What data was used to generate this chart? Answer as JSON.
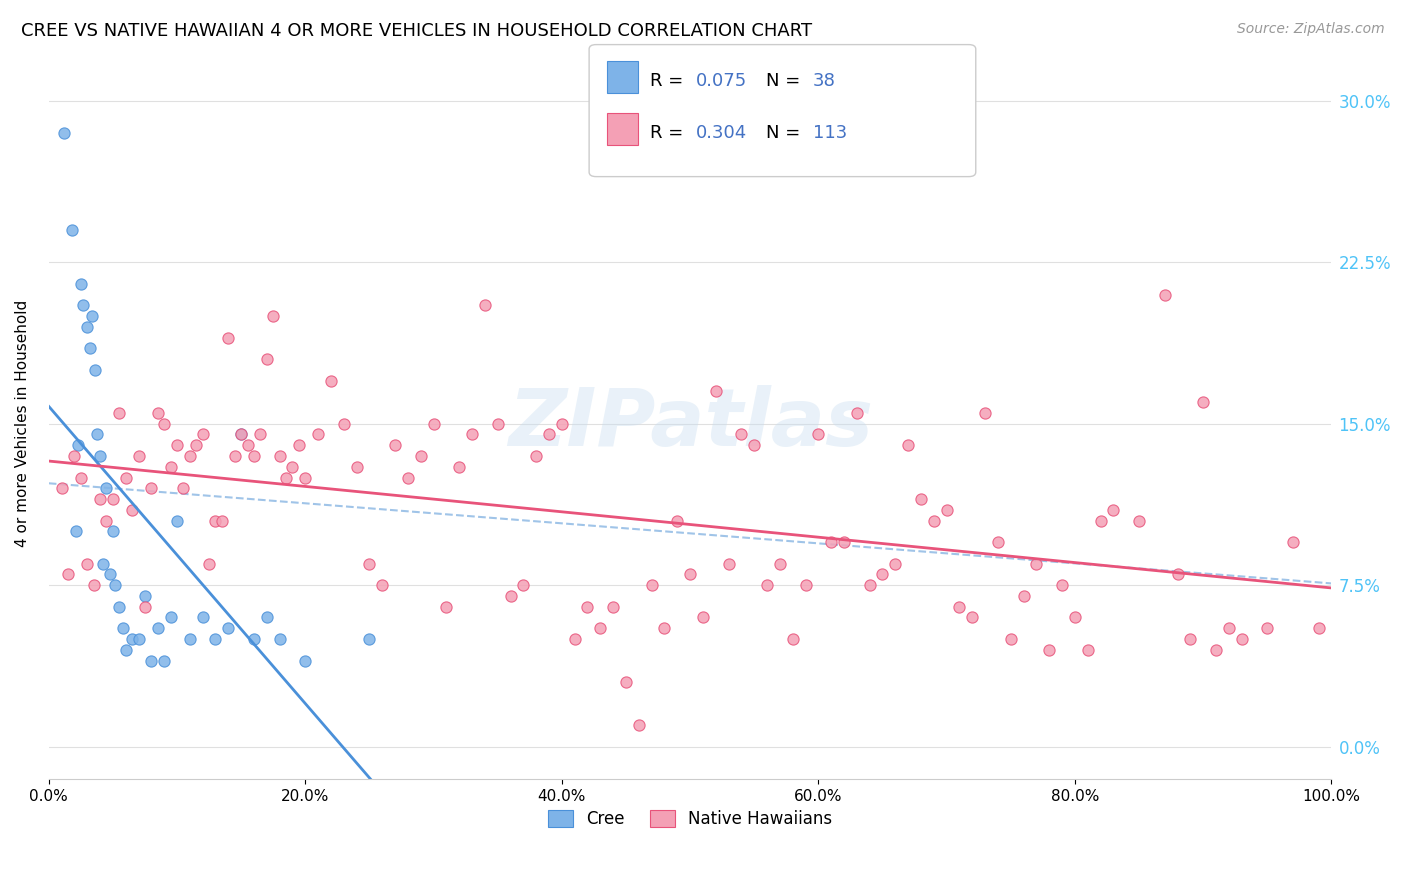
{
  "title": "CREE VS NATIVE HAWAIIAN 4 OR MORE VEHICLES IN HOUSEHOLD CORRELATION CHART",
  "source": "Source: ZipAtlas.com",
  "ylabel": "4 or more Vehicles in Household",
  "xlim": [
    0.0,
    100.0
  ],
  "ylim": [
    -1.5,
    31.5
  ],
  "yticks": [
    0.0,
    7.5,
    15.0,
    22.5,
    30.0
  ],
  "ytick_labels": [
    "0.0%",
    "7.5%",
    "15.0%",
    "22.5%",
    "30.0%"
  ],
  "xticks": [
    0.0,
    20.0,
    40.0,
    60.0,
    80.0,
    100.0
  ],
  "xtick_labels": [
    "0.0%",
    "20.0%",
    "40.0%",
    "60.0%",
    "80.0%",
    "100.0%"
  ],
  "cree_color": "#7EB3E8",
  "hawaiian_color": "#F4A0B5",
  "cree_line_color": "#4A90D9",
  "hawaiian_line_color": "#E8537A",
  "dashed_line_color": "#A0C4E8",
  "legend_r_color": "#4472C4",
  "cree_R": 0.075,
  "cree_N": 38,
  "hawaiian_R": 0.304,
  "hawaiian_N": 113,
  "watermark": "ZIPatlas",
  "cree_x": [
    1.2,
    1.8,
    2.1,
    2.3,
    2.5,
    2.7,
    3.0,
    3.2,
    3.4,
    3.6,
    3.8,
    4.0,
    4.2,
    4.5,
    4.8,
    5.0,
    5.2,
    5.5,
    5.8,
    6.0,
    6.5,
    7.0,
    7.5,
    8.0,
    8.5,
    9.0,
    9.5,
    10.0,
    11.0,
    12.0,
    13.0,
    14.0,
    15.0,
    16.0,
    17.0,
    18.0,
    20.0,
    25.0
  ],
  "cree_y": [
    28.5,
    24.0,
    10.0,
    14.0,
    21.5,
    20.5,
    19.5,
    18.5,
    20.0,
    17.5,
    14.5,
    13.5,
    8.5,
    12.0,
    8.0,
    10.0,
    7.5,
    6.5,
    5.5,
    4.5,
    5.0,
    5.0,
    7.0,
    4.0,
    5.5,
    4.0,
    6.0,
    10.5,
    5.0,
    6.0,
    5.0,
    5.5,
    14.5,
    5.0,
    6.0,
    5.0,
    4.0,
    5.0
  ],
  "hawaiian_x": [
    1.0,
    1.5,
    2.0,
    2.5,
    3.0,
    3.5,
    4.0,
    4.5,
    5.0,
    5.5,
    6.0,
    6.5,
    7.0,
    7.5,
    8.0,
    8.5,
    9.0,
    9.5,
    10.0,
    10.5,
    11.0,
    11.5,
    12.0,
    12.5,
    13.0,
    13.5,
    14.0,
    14.5,
    15.0,
    15.5,
    16.0,
    16.5,
    17.0,
    17.5,
    18.0,
    18.5,
    19.0,
    19.5,
    20.0,
    21.0,
    22.0,
    23.0,
    24.0,
    25.0,
    26.0,
    27.0,
    28.0,
    29.0,
    30.0,
    31.0,
    32.0,
    33.0,
    34.0,
    35.0,
    36.0,
    37.0,
    38.0,
    39.0,
    40.0,
    41.0,
    42.0,
    43.0,
    44.0,
    45.0,
    46.0,
    47.0,
    48.0,
    49.0,
    50.0,
    51.0,
    52.0,
    53.0,
    54.0,
    55.0,
    56.0,
    57.0,
    58.0,
    59.0,
    60.0,
    61.0,
    62.0,
    63.0,
    64.0,
    65.0,
    66.0,
    67.0,
    68.0,
    69.0,
    70.0,
    71.0,
    72.0,
    73.0,
    74.0,
    75.0,
    76.0,
    77.0,
    78.0,
    79.0,
    80.0,
    81.0,
    82.0,
    83.0,
    85.0,
    87.0,
    88.0,
    89.0,
    90.0,
    91.0,
    92.0,
    93.0,
    95.0,
    97.0,
    99.0
  ],
  "hawaiian_y": [
    12.0,
    8.0,
    13.5,
    12.5,
    8.5,
    7.5,
    11.5,
    10.5,
    11.5,
    15.5,
    12.5,
    11.0,
    13.5,
    6.5,
    12.0,
    15.5,
    15.0,
    13.0,
    14.0,
    12.0,
    13.5,
    14.0,
    14.5,
    8.5,
    10.5,
    10.5,
    19.0,
    13.5,
    14.5,
    14.0,
    13.5,
    14.5,
    18.0,
    20.0,
    13.5,
    12.5,
    13.0,
    14.0,
    12.5,
    14.5,
    17.0,
    15.0,
    13.0,
    8.5,
    7.5,
    14.0,
    12.5,
    13.5,
    15.0,
    6.5,
    13.0,
    14.5,
    20.5,
    15.0,
    7.0,
    7.5,
    13.5,
    14.5,
    15.0,
    5.0,
    6.5,
    5.5,
    6.5,
    3.0,
    1.0,
    7.5,
    5.5,
    10.5,
    8.0,
    6.0,
    16.5,
    8.5,
    14.5,
    14.0,
    7.5,
    8.5,
    5.0,
    7.5,
    14.5,
    9.5,
    9.5,
    15.5,
    7.5,
    8.0,
    8.5,
    14.0,
    11.5,
    10.5,
    11.0,
    6.5,
    6.0,
    15.5,
    9.5,
    5.0,
    7.0,
    8.5,
    4.5,
    7.5,
    6.0,
    4.5,
    10.5,
    11.0,
    10.5,
    21.0,
    8.0,
    5.0,
    16.0,
    4.5,
    5.5,
    5.0,
    5.5,
    9.5,
    5.5
  ]
}
